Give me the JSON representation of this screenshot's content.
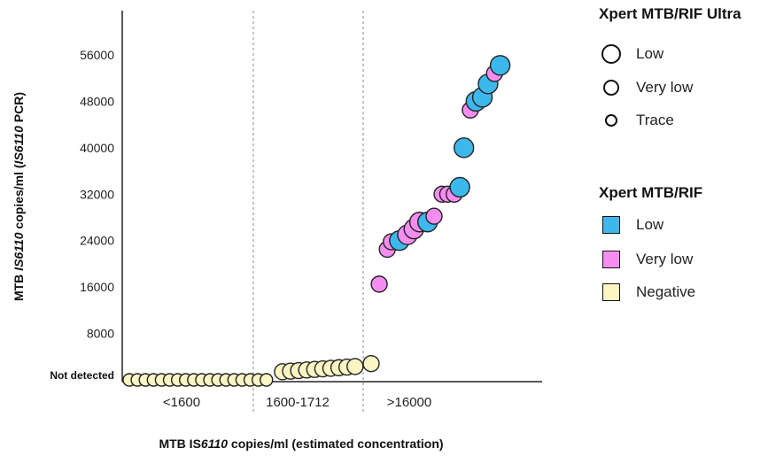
{
  "chart_data": {
    "type": "scatter",
    "ylabel_parts": [
      "MTB ",
      "IS6110",
      " copies/ml (",
      "IS6110",
      " PCR)"
    ],
    "xlabel_parts": [
      "MTB IS",
      "6110",
      " copies/ml (estimated concentration)"
    ],
    "yticks": [
      8000,
      16000,
      24000,
      32000,
      40000,
      48000,
      56000
    ],
    "ytick_labels": [
      "8000",
      "16000",
      "24000",
      "32000",
      "40000",
      "48000",
      "56000"
    ],
    "y_not_detected_label": "Not detected",
    "ylim": [
      0,
      60000
    ],
    "x_categories": [
      "<1600",
      "1600-1712",
      ">16000"
    ],
    "ultra_sizes": {
      "Low": 11,
      "Very low": 9,
      "Trace": 7
    },
    "mtbrif_colors": {
      "Low": "#3db8ec",
      "Very low": "#f58ef0",
      "Negative": "#fbf5c3"
    },
    "points": [
      {
        "x": 0,
        "y": 0,
        "mtbrif": "Negative",
        "ultra": "Trace"
      },
      {
        "x": 1,
        "y": 0,
        "mtbrif": "Negative",
        "ultra": "Trace"
      },
      {
        "x": 2,
        "y": 0,
        "mtbrif": "Negative",
        "ultra": "Trace"
      },
      {
        "x": 3,
        "y": 0,
        "mtbrif": "Negative",
        "ultra": "Trace"
      },
      {
        "x": 4,
        "y": 0,
        "mtbrif": "Negative",
        "ultra": "Trace"
      },
      {
        "x": 5,
        "y": 0,
        "mtbrif": "Negative",
        "ultra": "Trace"
      },
      {
        "x": 6,
        "y": 0,
        "mtbrif": "Negative",
        "ultra": "Trace"
      },
      {
        "x": 7,
        "y": 0,
        "mtbrif": "Negative",
        "ultra": "Trace"
      },
      {
        "x": 8,
        "y": 0,
        "mtbrif": "Negative",
        "ultra": "Trace"
      },
      {
        "x": 9,
        "y": 0,
        "mtbrif": "Negative",
        "ultra": "Trace"
      },
      {
        "x": 10,
        "y": 0,
        "mtbrif": "Negative",
        "ultra": "Trace"
      },
      {
        "x": 11,
        "y": 0,
        "mtbrif": "Negative",
        "ultra": "Trace"
      },
      {
        "x": 12,
        "y": 0,
        "mtbrif": "Negative",
        "ultra": "Trace"
      },
      {
        "x": 13,
        "y": 0,
        "mtbrif": "Negative",
        "ultra": "Trace"
      },
      {
        "x": 14,
        "y": 0,
        "mtbrif": "Negative",
        "ultra": "Trace"
      },
      {
        "x": 15,
        "y": 0,
        "mtbrif": "Negative",
        "ultra": "Trace"
      },
      {
        "x": 16,
        "y": 0,
        "mtbrif": "Negative",
        "ultra": "Trace"
      },
      {
        "x": 17,
        "y": 0,
        "mtbrif": "Negative",
        "ultra": "Trace"
      },
      {
        "x": 19,
        "y": 1400,
        "mtbrif": "Negative",
        "ultra": "Very low"
      },
      {
        "x": 20,
        "y": 1500,
        "mtbrif": "Negative",
        "ultra": "Very low"
      },
      {
        "x": 21,
        "y": 1600,
        "mtbrif": "Negative",
        "ultra": "Very low"
      },
      {
        "x": 22,
        "y": 1700,
        "mtbrif": "Negative",
        "ultra": "Very low"
      },
      {
        "x": 23,
        "y": 1800,
        "mtbrif": "Negative",
        "ultra": "Very low"
      },
      {
        "x": 24,
        "y": 1900,
        "mtbrif": "Negative",
        "ultra": "Very low"
      },
      {
        "x": 25,
        "y": 2000,
        "mtbrif": "Negative",
        "ultra": "Very low"
      },
      {
        "x": 26,
        "y": 2100,
        "mtbrif": "Negative",
        "ultra": "Very low"
      },
      {
        "x": 27,
        "y": 2200,
        "mtbrif": "Negative",
        "ultra": "Very low"
      },
      {
        "x": 28,
        "y": 2300,
        "mtbrif": "Negative",
        "ultra": "Very low"
      },
      {
        "x": 30,
        "y": 2800,
        "mtbrif": "Negative",
        "ultra": "Very low"
      },
      {
        "x": 31,
        "y": 16500,
        "mtbrif": "Very low",
        "ultra": "Very low"
      },
      {
        "x": 32,
        "y": 22500,
        "mtbrif": "Very low",
        "ultra": "Very low"
      },
      {
        "x": 32.5,
        "y": 23800,
        "mtbrif": "Very low",
        "ultra": "Very low"
      },
      {
        "x": 33.5,
        "y": 24000,
        "mtbrif": "Low",
        "ultra": "Low"
      },
      {
        "x": 34.5,
        "y": 25000,
        "mtbrif": "Very low",
        "ultra": "Low"
      },
      {
        "x": 35.3,
        "y": 26000,
        "mtbrif": "Very low",
        "ultra": "Low"
      },
      {
        "x": 36,
        "y": 27200,
        "mtbrif": "Very low",
        "ultra": "Low"
      },
      {
        "x": 37,
        "y": 27200,
        "mtbrif": "Low",
        "ultra": "Low"
      },
      {
        "x": 37.8,
        "y": 28200,
        "mtbrif": "Very low",
        "ultra": "Very low"
      },
      {
        "x": 38.8,
        "y": 32000,
        "mtbrif": "Very low",
        "ultra": "Very low"
      },
      {
        "x": 39.5,
        "y": 32000,
        "mtbrif": "Very low",
        "ultra": "Very low"
      },
      {
        "x": 40.3,
        "y": 32000,
        "mtbrif": "Very low",
        "ultra": "Very low"
      },
      {
        "x": 41,
        "y": 33200,
        "mtbrif": "Low",
        "ultra": "Low"
      },
      {
        "x": 41.5,
        "y": 40000,
        "mtbrif": "Low",
        "ultra": "Low"
      },
      {
        "x": 42.3,
        "y": 46500,
        "mtbrif": "Very low",
        "ultra": "Very low"
      },
      {
        "x": 43,
        "y": 48000,
        "mtbrif": "Low",
        "ultra": "Low"
      },
      {
        "x": 43.8,
        "y": 48700,
        "mtbrif": "Low",
        "ultra": "Low"
      },
      {
        "x": 44.5,
        "y": 51000,
        "mtbrif": "Low",
        "ultra": "Low"
      },
      {
        "x": 45.3,
        "y": 52800,
        "mtbrif": "Very low",
        "ultra": "Very low"
      },
      {
        "x": 46,
        "y": 54200,
        "mtbrif": "Low",
        "ultra": "Low"
      }
    ],
    "legend_ultra": {
      "title": "Xpert MTB/RIF Ultra",
      "items": [
        "Low",
        "Very low",
        "Trace"
      ]
    },
    "legend_mtbrif": {
      "title": "Xpert MTB/RIF",
      "items": [
        "Low",
        "Very low",
        "Negative"
      ]
    },
    "grid": false
  }
}
